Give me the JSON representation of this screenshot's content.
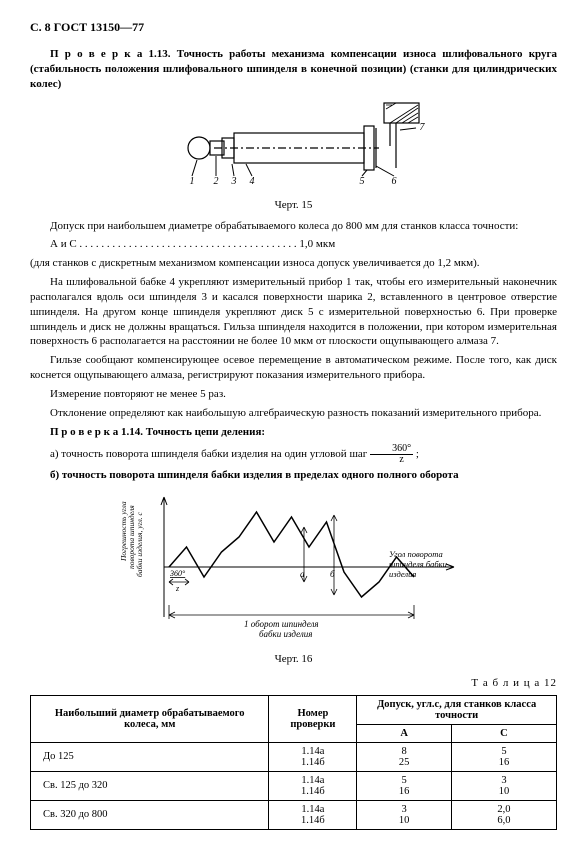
{
  "header": "С. 8 ГОСТ 13150—77",
  "check113": {
    "title": "П р о в е р к а  1.13. Точность работы механизма компенсации износа шлифовального круга (стабильность положения шлифовального шпинделя в конечной позиции) (станки для цилиндрических колес)"
  },
  "fig15": {
    "caption": "Черт. 15",
    "labels": [
      "1",
      "2",
      "3",
      "4",
      "5",
      "6",
      "7"
    ]
  },
  "tolerance_text": {
    "p1": "Допуск при наибольшем диаметре обрабатываемого колеса до 800 мм для станков класса точности:",
    "p2_left": "А и С",
    "p2_right": "1,0 мкм",
    "p3": "(для станков с дискретным механизмом компенсации износа допуск увеличивается до 1,2 мкм).",
    "p4": "На шлифовальной бабке 4 укрепляют измерительный прибор 1 так, чтобы его измерительный наконечник располагался вдоль оси шпинделя 3 и касался поверхности шарика 2, вставленного в центровое отверстие шпинделя. На другом конце шпинделя укрепляют диск 5 с измерительной поверхностью 6. При проверке шпиндель и диск не должны вращаться. Гильза шпинделя находится в положении, при котором измерительная поверхность 6 располагается на расстоянии не более 10 мкм от плоскости ощупывающего алмаза 7.",
    "p5": "Гильзе сообщают компенсирующее осевое перемещение в автоматическом режиме. После того, как диск коснется ощупывающего алмаза, регистрируют показания измерительного прибора.",
    "p6": "Измерение повторяют не менее 5 раз.",
    "p7": "Отклонение определяют как наибольшую алгебраическую разность показаний измерительного прибора."
  },
  "check114": {
    "title": "П р о в е р к а  1.14. Точность цепи деления:",
    "item_a_pre": "а) точность поворота шпинделя бабки изделия на один угловой шаг ",
    "item_a_post": " ;",
    "item_b": "б) точность поворота шпинделя бабки изделия в пределах одного полного оборота"
  },
  "fig16": {
    "caption": "Черт. 16",
    "ylabel": "Погрешность угла поворота шпинделя бабки изделия, угл. с",
    "xlabel_upper": "Угол поворота шпинделя бабки изделия",
    "xlabel_lower": "1 оборот шпинделя бабки изделия",
    "step_label_num": "360°",
    "step_label_den": "z",
    "letters": [
      "а",
      "б"
    ],
    "chart": {
      "type": "line",
      "x": [
        0,
        1,
        2,
        3,
        4,
        5,
        6,
        7,
        8,
        9,
        10,
        11,
        12,
        13,
        14
      ],
      "y": [
        0,
        20,
        -10,
        15,
        30,
        55,
        25,
        50,
        20,
        45,
        -5,
        -30,
        -15,
        10,
        -10
      ],
      "line_color": "#000000",
      "line_width": 1.5,
      "axis_y": 0,
      "background": "#ffffff"
    }
  },
  "table12": {
    "title": "Т а б л и ц а  12",
    "head_col1": "Наибольший диаметр обрабатываемого колеса, мм",
    "head_col2": "Номер проверки",
    "head_col3": "Допуск, угл.с, для станков класса точности",
    "sub_A": "А",
    "sub_C": "С",
    "rows": [
      {
        "d": "До 125",
        "n1": "1.14а",
        "n2": "1.14б",
        "a1": "8",
        "a2": "25",
        "c1": "5",
        "c2": "16"
      },
      {
        "d": "Св. 125 до 320",
        "n1": "1.14а",
        "n2": "1.14б",
        "a1": "5",
        "a2": "16",
        "c1": "3",
        "c2": "10"
      },
      {
        "d": "Св. 320 до 800",
        "n1": "1.14а",
        "n2": "1.14б",
        "a1": "3",
        "a2": "10",
        "c1": "2,0",
        "c2": "6,0"
      }
    ]
  },
  "frac360": {
    "num": "360°",
    "den": "z"
  }
}
